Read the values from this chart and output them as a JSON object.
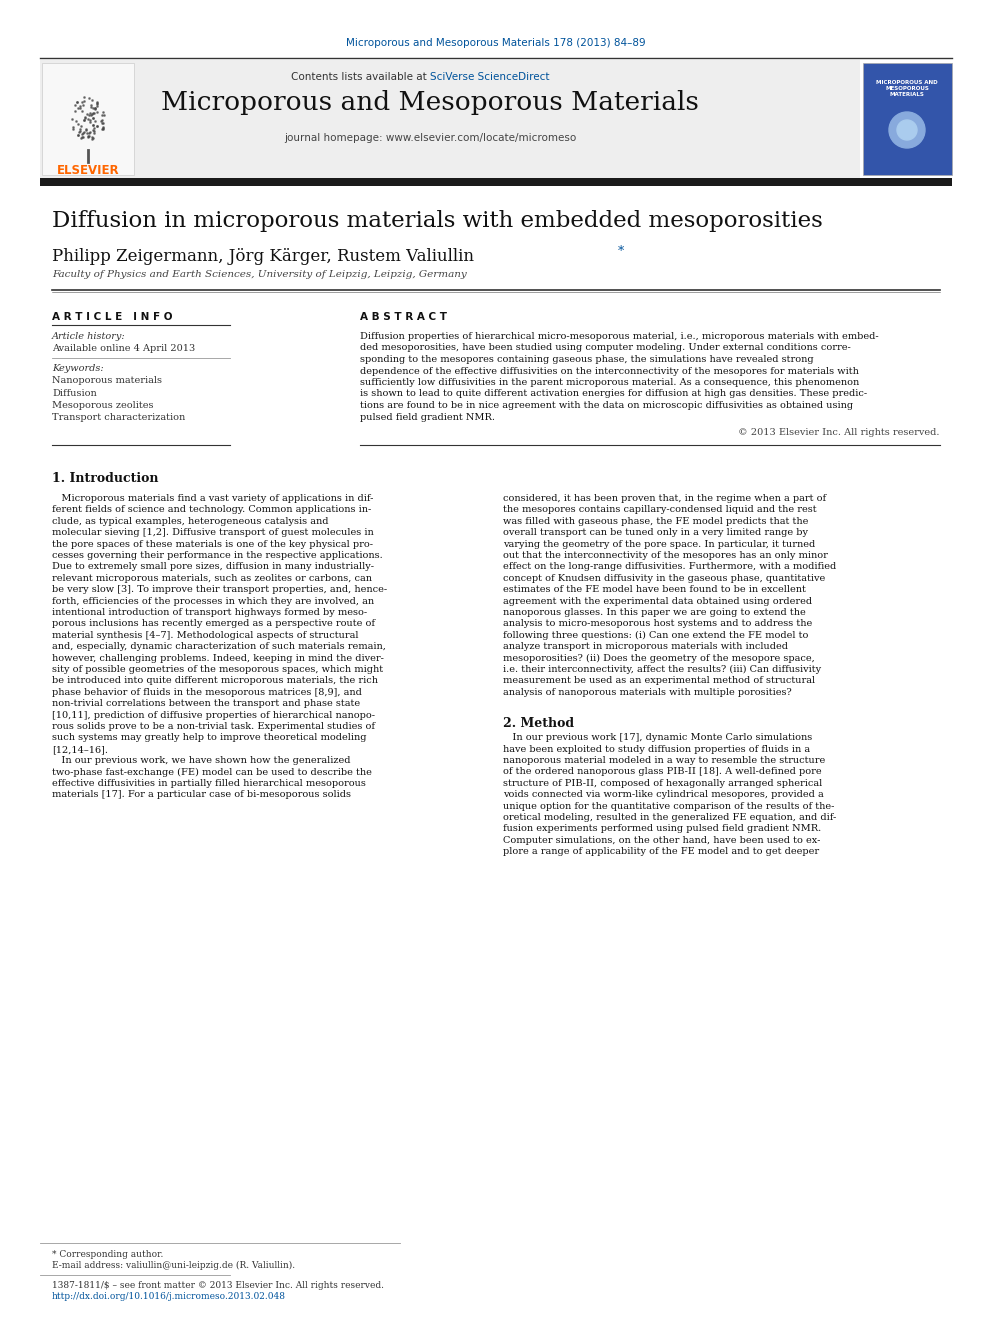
{
  "page_title": "Diffusion in microporous materials with embedded mesoporosities",
  "journal_ref": "Microporous and Mesoporous Materials 178 (2013) 84–89",
  "journal_name": "Microporous and Mesoporous Materials",
  "journal_homepage": "journal homepage: www.elsevier.com/locate/micromeso",
  "authors_main": "Philipp Zeigermann, Jörg Kärger, Rustem Valiullin ",
  "authors_star": "*",
  "affiliation": "Faculty of Physics and Earth Sciences, University of Leipzig, Leipzig, Germany",
  "article_history_label": "Article history:",
  "available_online": "Available online 4 April 2013",
  "keywords_label": "Keywords:",
  "keywords": [
    "Nanoporous materials",
    "Diffusion",
    "Mesoporous zeolites",
    "Transport characterization"
  ],
  "article_info_header": "A R T I C L E   I N F O",
  "abstract_header": "A B S T R A C T",
  "copyright": "© 2013 Elsevier Inc. All rights reserved.",
  "intro_heading": "1. Introduction",
  "method_heading": "2. Method",
  "footer_note": "* Corresponding author.",
  "footer_email": "E-mail address: valiullin@uni-leipzig.de (R. Valiullin).",
  "footer_issn": "1387-1811/$ – see front matter © 2013 Elsevier Inc. All rights reserved.",
  "footer_doi": "http://dx.doi.org/10.1016/j.micromeso.2013.02.048",
  "abstract_lines": [
    "Diffusion properties of hierarchical micro-mesoporous material, i.e., microporous materials with embed-",
    "ded mesoporosities, have been studied using computer modeling. Under external conditions corre-",
    "sponding to the mesopores containing gaseous phase, the simulations have revealed strong",
    "dependence of the effective diffusivities on the interconnectivity of the mesopores for materials with",
    "sufficiently low diffusivities in the parent microporous material. As a consequence, this phenomenon",
    "is shown to lead to quite different activation energies for diffusion at high gas densities. These predic-",
    "tions are found to be in nice agreement with the data on microscopic diffusivities as obtained using",
    "pulsed field gradient NMR."
  ],
  "intro_col1_lines": [
    "   Microporous materials find a vast variety of applications in dif-",
    "ferent fields of science and technology. Common applications in-",
    "clude, as typical examples, heterogeneous catalysis and",
    "molecular sieving [1,2]. Diffusive transport of guest molecules in",
    "the pore spaces of these materials is one of the key physical pro-",
    "cesses governing their performance in the respective applications.",
    "Due to extremely small pore sizes, diffusion in many industrially-",
    "relevant microporous materials, such as zeolites or carbons, can",
    "be very slow [3]. To improve their transport properties, and, hence-",
    "forth, efficiencies of the processes in which they are involved, an",
    "intentional introduction of transport highways formed by meso-",
    "porous inclusions has recently emerged as a perspective route of",
    "material synthesis [4–7]. Methodological aspects of structural",
    "and, especially, dynamic characterization of such materials remain,",
    "however, challenging problems. Indeed, keeping in mind the diver-",
    "sity of possible geometries of the mesoporous spaces, which might",
    "be introduced into quite different microporous materials, the rich",
    "phase behavior of fluids in the mesoporous matrices [8,9], and",
    "non-trivial correlations between the transport and phase state",
    "[10,11], prediction of diffusive properties of hierarchical nanopo-",
    "rous solids prove to be a non-trivial task. Experimental studies of",
    "such systems may greatly help to improve theoretical modeling",
    "[12,14–16].",
    "   In our previous work, we have shown how the generalized",
    "two-phase fast-exchange (FE) model can be used to describe the",
    "effective diffusivities in partially filled hierarchical mesoporous",
    "materials [17]. For a particular case of bi-mesoporous solids"
  ],
  "intro_col2_lines": [
    "considered, it has been proven that, in the regime when a part of",
    "the mesopores contains capillary-condensed liquid and the rest",
    "was filled with gaseous phase, the FE model predicts that the",
    "overall transport can be tuned only in a very limited range by",
    "varying the geometry of the pore space. In particular, it turned",
    "out that the interconnectivity of the mesopores has an only minor",
    "effect on the long-range diffusivities. Furthermore, with a modified",
    "concept of Knudsen diffusivity in the gaseous phase, quantitative",
    "estimates of the FE model have been found to be in excellent",
    "agreement with the experimental data obtained using ordered",
    "nanoporous glasses. In this paper we are going to extend the",
    "analysis to micro-mesoporous host systems and to address the",
    "following three questions: (i) Can one extend the FE model to",
    "analyze transport in microporous materials with included",
    "mesoporosities? (ii) Does the geometry of the mesopore space,",
    "i.e. their interconnectivity, affect the results? (iii) Can diffusivity",
    "measurement be used as an experimental method of structural",
    "analysis of nanoporous materials with multiple porosities?"
  ],
  "method_lines": [
    "   In our previous work [17], dynamic Monte Carlo simulations",
    "have been exploited to study diffusion properties of fluids in a",
    "nanoporous material modeled in a way to resemble the structure",
    "of the ordered nanoporous glass PIB-II [18]. A well-defined pore",
    "structure of PIB-II, composed of hexagonally arranged spherical",
    "voids connected via worm-like cylindrical mesopores, provided a",
    "unique option for the quantitative comparison of the results of the-",
    "oretical modeling, resulted in the generalized FE equation, and dif-",
    "fusion experiments performed using pulsed field gradient NMR.",
    "Computer simulations, on the other hand, have been used to ex-",
    "plore a range of applicability of the FE model and to get deeper"
  ],
  "bg_color": "#ffffff",
  "dark_bar_color": "#1a1a1a",
  "elsevier_orange": "#ff6600",
  "link_color": "#00539b",
  "journal_ref_color": "#00539b",
  "header_bg": "#eeeeee"
}
